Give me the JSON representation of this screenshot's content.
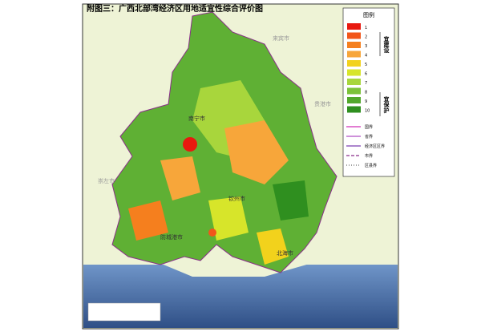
{
  "title": "附图三：广西北部湾经济区用地适宜性综合评价图",
  "legend": {
    "title": "图例",
    "classes": [
      {
        "label": "1",
        "color": "#e8190f"
      },
      {
        "label": "2",
        "color": "#f2561a"
      },
      {
        "label": "3",
        "color": "#f57f1e"
      },
      {
        "label": "4",
        "color": "#f7a63a"
      },
      {
        "label": "5",
        "color": "#f2d21c"
      },
      {
        "label": "6",
        "color": "#d7e52a"
      },
      {
        "label": "7",
        "color": "#a8d63c"
      },
      {
        "label": "8",
        "color": "#7cc23a"
      },
      {
        "label": "9",
        "color": "#52a82c"
      },
      {
        "label": "10",
        "color": "#2f8f1f"
      }
    ],
    "groups": [
      "宜建设",
      "宜保护"
    ],
    "lines": [
      {
        "label": "国界",
        "color": "#d12fb8",
        "dash": ""
      },
      {
        "label": "省界",
        "color": "#b14fc4",
        "dash": ""
      },
      {
        "label": "经济区区界",
        "color": "#7b3fb0",
        "dash": ""
      },
      {
        "label": "市界",
        "color": "#8a2f8a",
        "dash": "4 2"
      },
      {
        "label": "区县界",
        "color": "#666",
        "dash": "1 2"
      }
    ]
  },
  "places": [
    "来宾市",
    "贵港市",
    "崇左市",
    "南宁市",
    "钦州市",
    "防城港市",
    "北海市"
  ]
}
